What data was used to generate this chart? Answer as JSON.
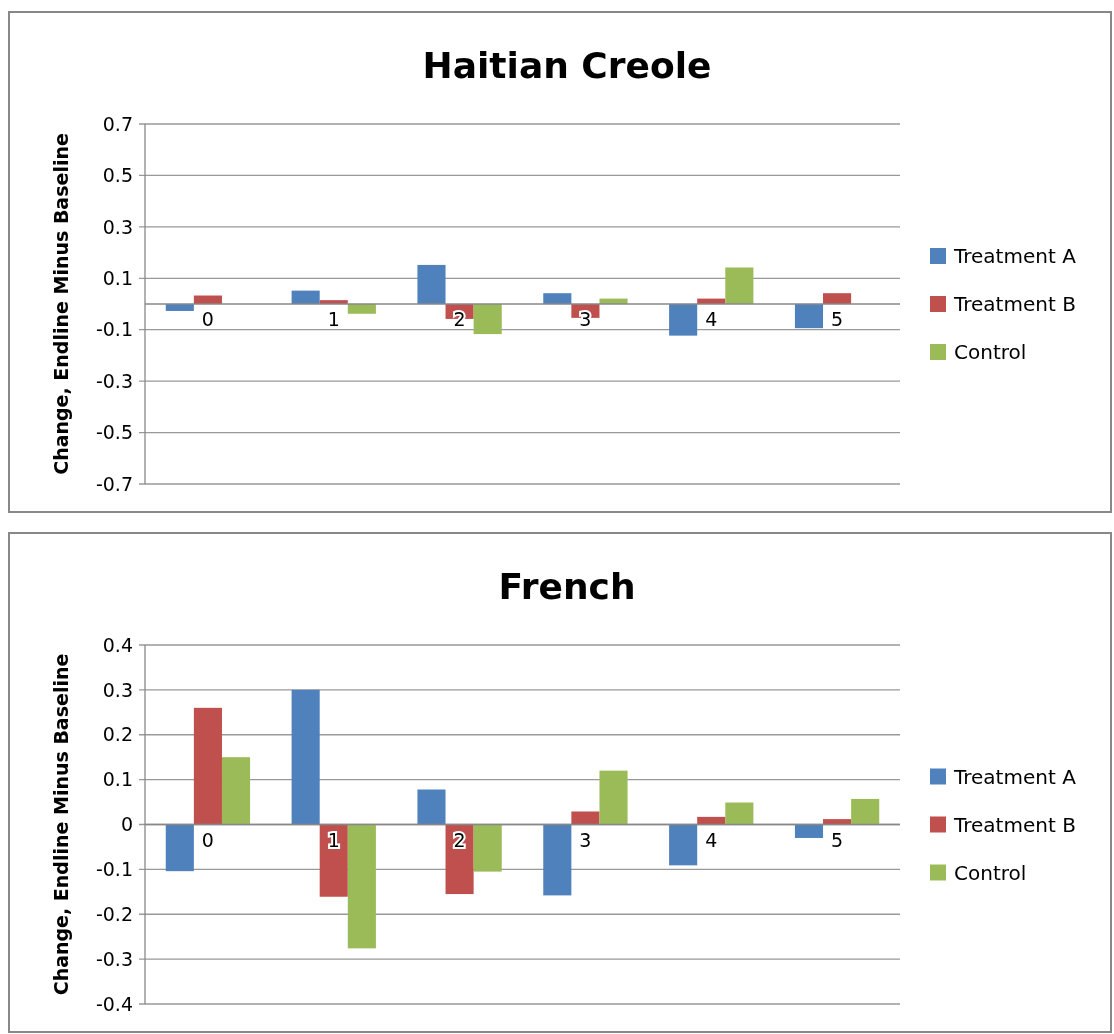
{
  "chart_data": [
    {
      "type": "bar",
      "title": "Haitian Creole",
      "ylabel": "Change, Endline Minus Baseline",
      "categories": [
        "0",
        "1",
        "2",
        "3",
        "4",
        "5"
      ],
      "series": [
        {
          "name": "Treatment A",
          "color": "#4f81bd",
          "values": [
            -0.027,
            0.052,
            0.152,
            0.042,
            -0.123,
            -0.094
          ]
        },
        {
          "name": "Treatment B",
          "color": "#c0504d",
          "values": [
            0.033,
            0.015,
            -0.058,
            -0.054,
            0.021,
            0.042
          ]
        },
        {
          "name": "Control",
          "color": "#9bbb59",
          "values": [
            0,
            -0.038,
            -0.117,
            0.021,
            0.142,
            0
          ]
        }
      ],
      "ylim": [
        -0.7,
        0.7
      ],
      "yticks": [
        -0.7,
        -0.5,
        -0.3,
        -0.1,
        0.1,
        0.3,
        0.5,
        0.7
      ],
      "grid": "y",
      "legend": "right"
    },
    {
      "type": "bar",
      "title": "French",
      "ylabel": "Change, Endline Minus Baseline",
      "categories": [
        "0",
        "1",
        "2",
        "3",
        "4",
        "5"
      ],
      "series": [
        {
          "name": "Treatment A",
          "color": "#4f81bd",
          "values": [
            -0.104,
            0.3,
            0.078,
            -0.158,
            -0.091,
            -0.03
          ]
        },
        {
          "name": "Treatment B",
          "color": "#c0504d",
          "values": [
            0.26,
            -0.161,
            -0.155,
            0.029,
            0.017,
            0.012
          ]
        },
        {
          "name": "Control",
          "color": "#9bbb59",
          "values": [
            0.15,
            -0.276,
            -0.105,
            0.12,
            0.049,
            0.057
          ]
        }
      ],
      "ylim": [
        -0.4,
        0.4
      ],
      "yticks": [
        -0.4,
        -0.3,
        -0.2,
        -0.1,
        0,
        0.1,
        0.2,
        0.3,
        0.4
      ],
      "grid": "y",
      "legend": "right"
    }
  ]
}
